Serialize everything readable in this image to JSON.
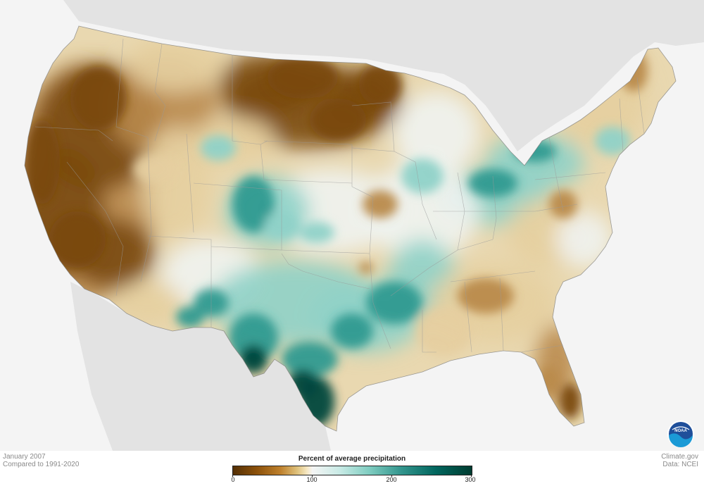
{
  "caption": {
    "date": "January 2007",
    "baseline": "Compared to 1991-2020"
  },
  "credit": {
    "source": "Climate.gov",
    "data": "Data: NCEI"
  },
  "legend": {
    "title": "Percent of average precipitation",
    "ticks": [
      "0",
      "100",
      "200",
      "300"
    ],
    "colors": [
      "#543005",
      "#8c510a",
      "#bf812d",
      "#dfc27d",
      "#f6e8c3",
      "#f5f5f5",
      "#c7eae5",
      "#80cdc1",
      "#35978f",
      "#01665e",
      "#003c30"
    ]
  },
  "logo": {
    "text": "NOAA",
    "icon": "noaa-logo-icon"
  },
  "map": {
    "subject": "contiguous-united-states-precipitation-anomaly",
    "colors": {
      "very_dry": "#7a4a10",
      "dry": "#b98a4c",
      "slightly_dry": "#e6cfa0",
      "normal": "#f0f3f1",
      "wet": "#8fd2c8",
      "very_wet": "#2f9a90",
      "extremely_wet": "#04463c",
      "land_outside": "#e3e3e3",
      "water": "#f4f4f4"
    }
  }
}
